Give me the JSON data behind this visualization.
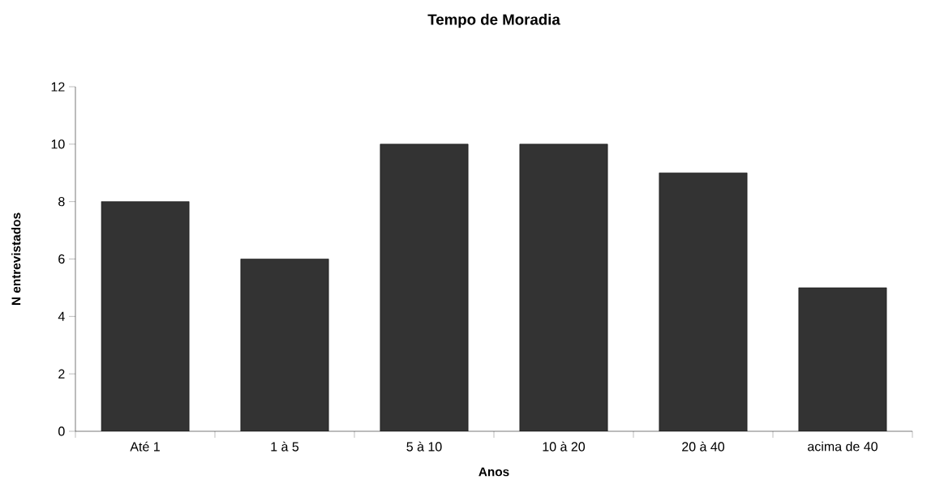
{
  "chart_data": {
    "type": "bar",
    "title": "Tempo de Moradia",
    "xlabel": "Anos",
    "ylabel": "N entrevistados",
    "categories": [
      "Até 1",
      "1 à 5",
      "5 à 10",
      "10 à 20",
      "20 à 40",
      "acima de 40"
    ],
    "values": [
      8,
      6,
      10,
      10,
      9,
      5
    ],
    "color": "#333333",
    "ylim": [
      0,
      12
    ],
    "yticks": [
      0,
      2,
      4,
      6,
      8,
      10,
      12
    ]
  }
}
